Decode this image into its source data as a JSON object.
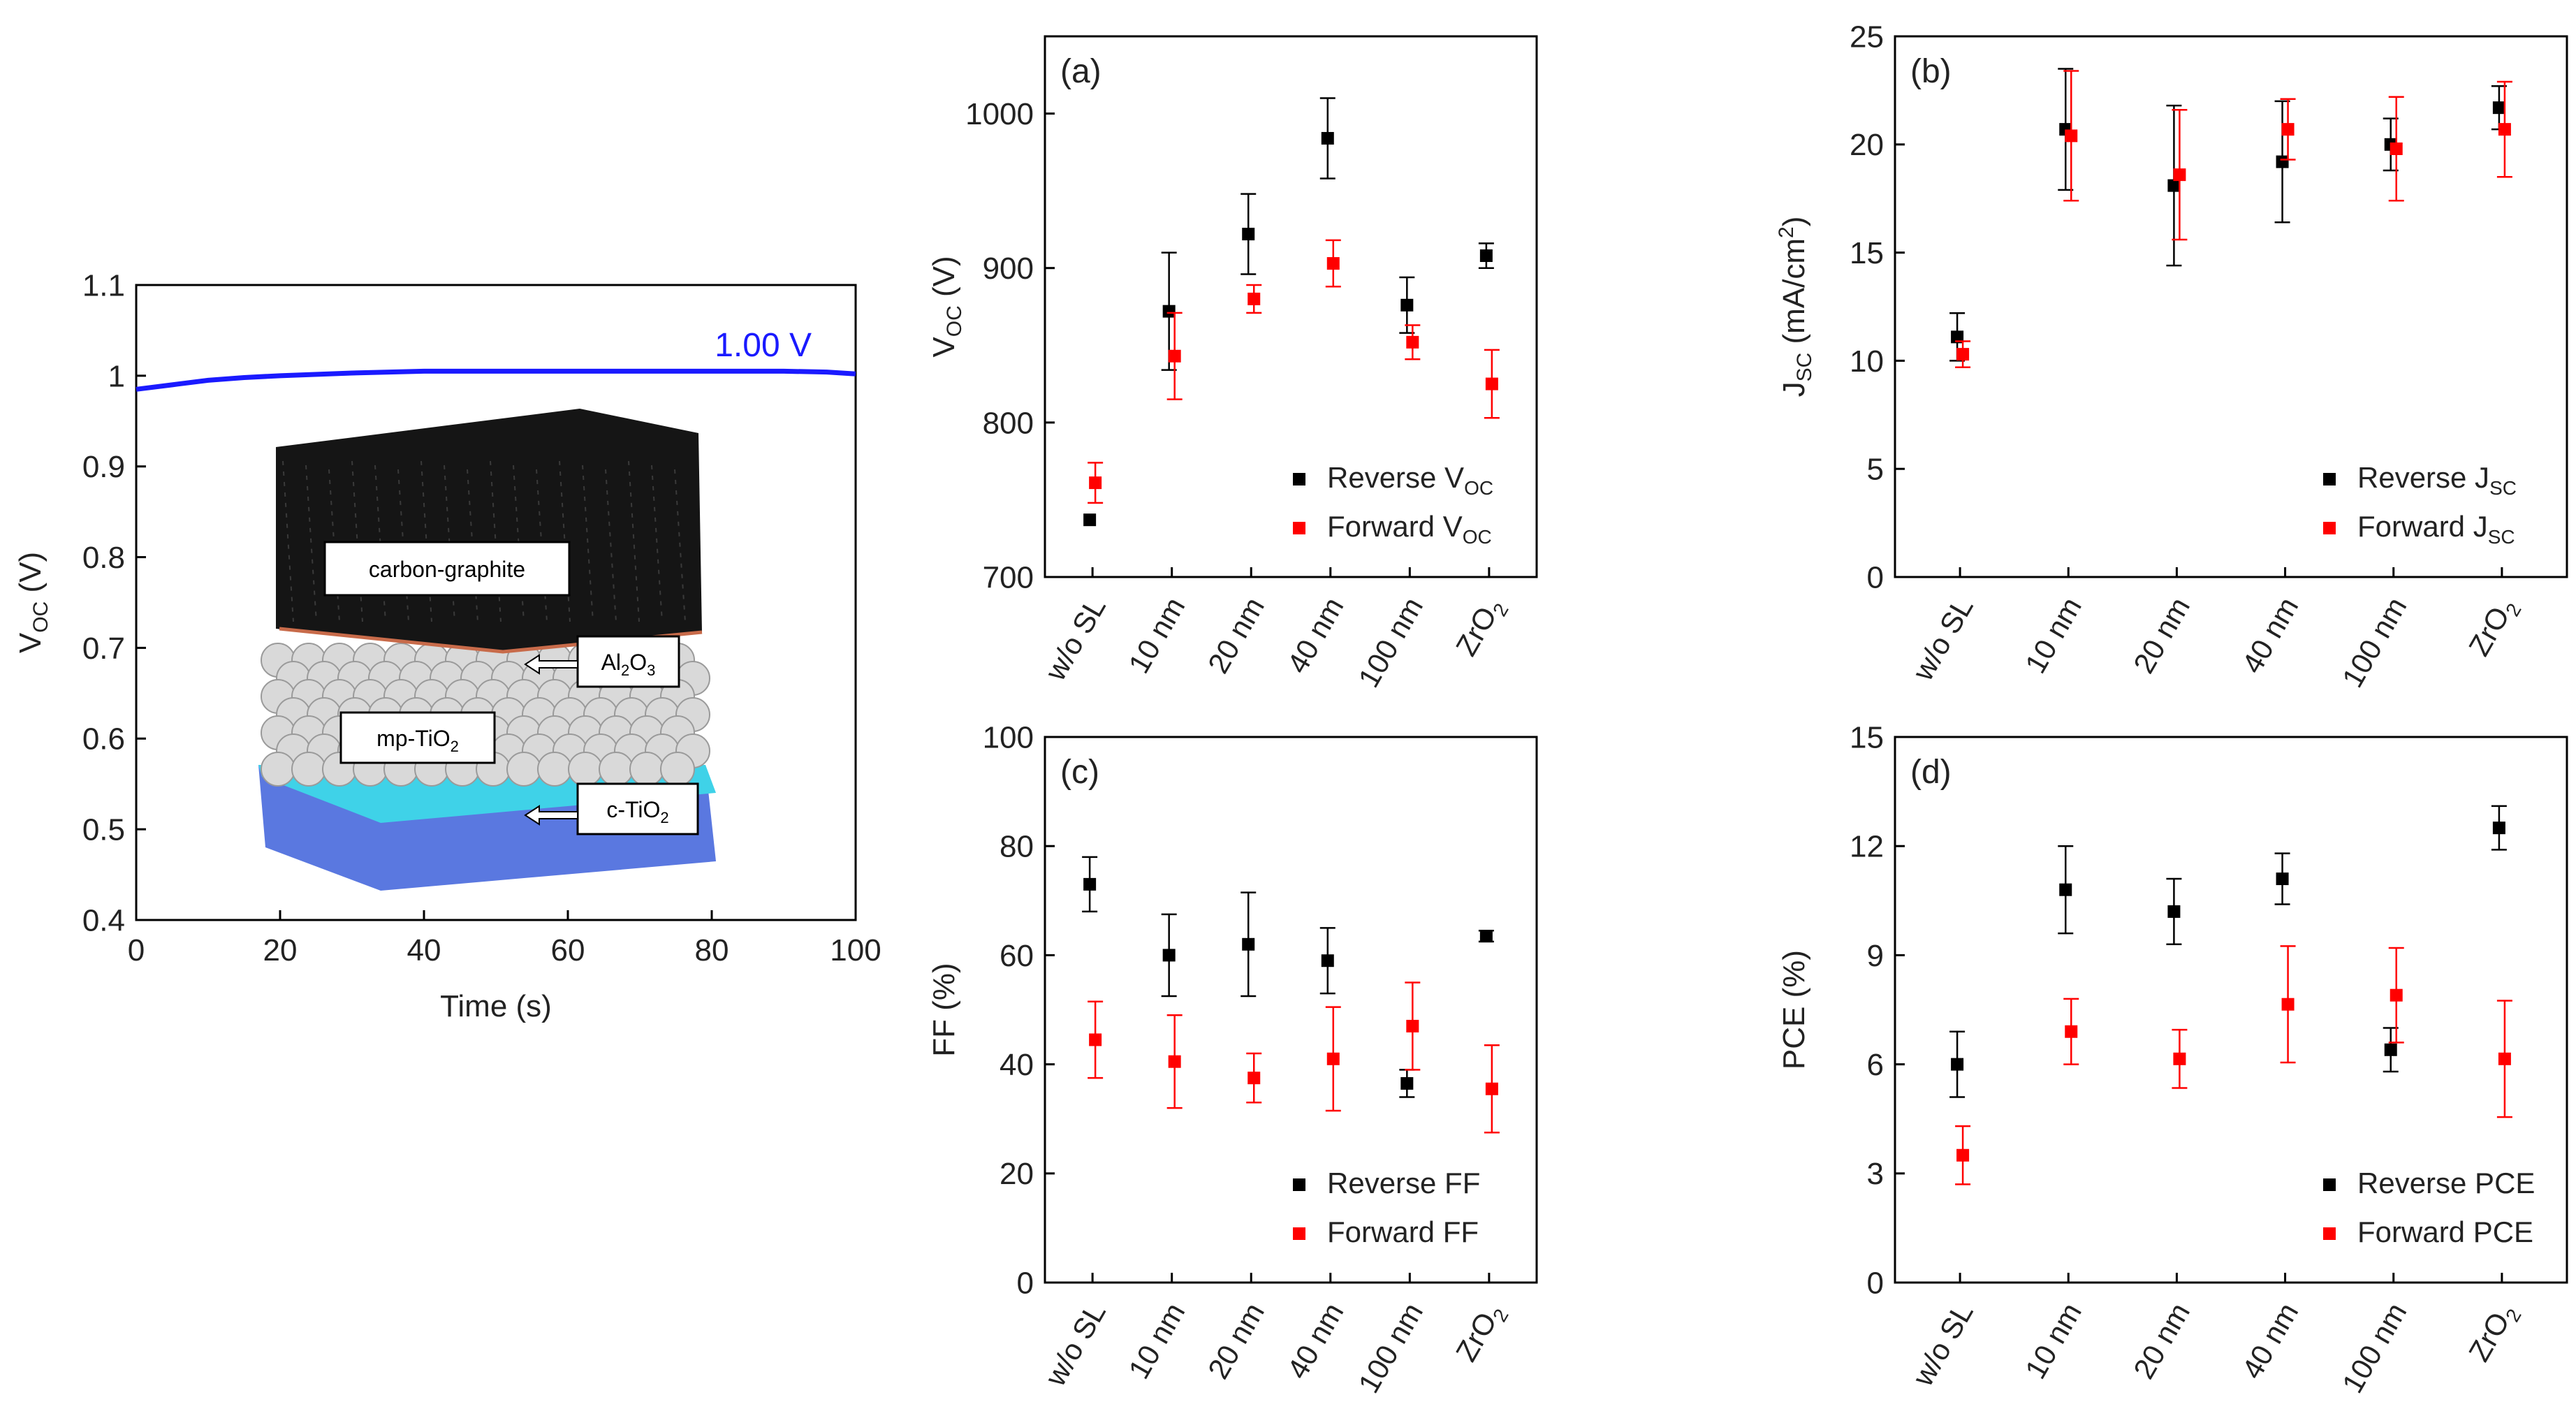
{
  "chart_data": [
    {
      "type": "line",
      "panel_label": "",
      "xlabel": "Time (s)",
      "ylabel_main": "V",
      "ylabel_sub": "OC",
      "ylabel_unit": " (V)",
      "xlim": [
        0,
        100
      ],
      "ylim": [
        0.4,
        1.1
      ],
      "xticks": [
        0,
        20,
        40,
        60,
        80,
        100
      ],
      "yticks": [
        0.4,
        0.5,
        0.6,
        0.7,
        0.8,
        0.9,
        1.0,
        1.1
      ],
      "series": [
        {
          "color": "#1a1aff",
          "x": [
            0,
            5,
            10,
            15,
            20,
            30,
            40,
            50,
            60,
            70,
            80,
            90,
            96,
            100
          ],
          "y": [
            0.985,
            0.99,
            0.995,
            0.998,
            1.0,
            1.003,
            1.005,
            1.005,
            1.005,
            1.005,
            1.005,
            1.005,
            1.004,
            1.002
          ]
        }
      ],
      "annotation": {
        "text": "1.00 V",
        "color": "#1a1aff"
      },
      "inset": {
        "labels": {
          "carbon": "carbon-graphite",
          "al_main": "Al",
          "al_sub": "2",
          "al_tail": "O",
          "al_sub2": "3",
          "mp_main": "mp-TiO",
          "mp_sub": "2",
          "c_main": "c-TiO",
          "c_sub": "2"
        },
        "colors": {
          "carbon": "#151515",
          "spheres": "#d9d9d9",
          "substrate_top": "#3fd2e8",
          "substrate_side": "#5a78e0"
        }
      }
    },
    {
      "type": "scatter",
      "panel_label": "(a)",
      "ylabel_main": "V",
      "ylabel_sub": "OC",
      "ylabel_unit": " (V)",
      "categories": [
        {
          "main": "w/o SL",
          "sub": ""
        },
        {
          "main": "10 nm",
          "sub": ""
        },
        {
          "main": "20 nm",
          "sub": ""
        },
        {
          "main": "40 nm",
          "sub": ""
        },
        {
          "main": "100 nm",
          "sub": ""
        },
        {
          "main": "ZrO",
          "sub": "2"
        }
      ],
      "ylim": [
        700,
        1050
      ],
      "yticks": [
        700,
        800,
        900,
        1000
      ],
      "series": [
        {
          "legend_main": "Reverse V",
          "legend_sub": "OC",
          "color": "#000000",
          "values": [
            737,
            872,
            922,
            984,
            876,
            908
          ],
          "errors": [
            0,
            38,
            26,
            26,
            18,
            8
          ]
        },
        {
          "legend_main": "Forward V",
          "legend_sub": "OC",
          "color": "#ff0000",
          "values": [
            761,
            843,
            880,
            903,
            852,
            825
          ],
          "errors": [
            13,
            28,
            9,
            15,
            11,
            22
          ]
        }
      ]
    },
    {
      "type": "scatter",
      "panel_label": "(b)",
      "ylabel_main": "J",
      "ylabel_sub": "SC",
      "ylabel_unit": " (mA/cm",
      "ylabel_sup": "2",
      "ylabel_close": ")",
      "categories": [
        {
          "main": "w/o SL",
          "sub": ""
        },
        {
          "main": "10 nm",
          "sub": ""
        },
        {
          "main": "20 nm",
          "sub": ""
        },
        {
          "main": "40 nm",
          "sub": ""
        },
        {
          "main": "100 nm",
          "sub": ""
        },
        {
          "main": "ZrO",
          "sub": "2"
        }
      ],
      "ylim": [
        0,
        25
      ],
      "yticks": [
        0,
        5,
        10,
        15,
        20,
        25
      ],
      "series": [
        {
          "legend_main": "Reverse J",
          "legend_sub": "SC",
          "color": "#000000",
          "values": [
            11.1,
            20.7,
            18.1,
            19.2,
            20.0,
            21.7
          ],
          "errors": [
            1.1,
            2.8,
            3.7,
            2.8,
            1.2,
            1.0
          ]
        },
        {
          "legend_main": "Forward J",
          "legend_sub": "SC",
          "color": "#ff0000",
          "values": [
            10.3,
            20.4,
            18.6,
            20.7,
            19.8,
            20.7
          ],
          "errors": [
            0.6,
            3.0,
            3.0,
            1.4,
            2.4,
            2.2
          ]
        }
      ]
    },
    {
      "type": "scatter",
      "panel_label": "(c)",
      "ylabel_main": "FF (%)",
      "ylabel_sub": "",
      "ylabel_unit": "",
      "categories": [
        {
          "main": "w/o SL",
          "sub": ""
        },
        {
          "main": "10 nm",
          "sub": ""
        },
        {
          "main": "20 nm",
          "sub": ""
        },
        {
          "main": "40 nm",
          "sub": ""
        },
        {
          "main": "100 nm",
          "sub": ""
        },
        {
          "main": "ZrO",
          "sub": "2"
        }
      ],
      "ylim": [
        0,
        100
      ],
      "yticks": [
        0,
        20,
        40,
        60,
        80,
        100
      ],
      "series": [
        {
          "legend_main": "Reverse FF",
          "legend_sub": "",
          "color": "#000000",
          "values": [
            73,
            60,
            62,
            59,
            36.5,
            63.5
          ],
          "errors": [
            5,
            7.5,
            9.5,
            6,
            2.5,
            1
          ]
        },
        {
          "legend_main": "Forward FF",
          "legend_sub": "",
          "color": "#ff0000",
          "values": [
            44.5,
            40.5,
            37.5,
            41,
            47,
            35.5
          ],
          "errors": [
            7,
            8.5,
            4.5,
            9.5,
            8,
            8
          ]
        }
      ]
    },
    {
      "type": "scatter",
      "panel_label": "(d)",
      "ylabel_main": "PCE (%)",
      "ylabel_sub": "",
      "ylabel_unit": "",
      "categories": [
        {
          "main": "w/o SL",
          "sub": ""
        },
        {
          "main": "10 nm",
          "sub": ""
        },
        {
          "main": "20 nm",
          "sub": ""
        },
        {
          "main": "40 nm",
          "sub": ""
        },
        {
          "main": "100 nm",
          "sub": ""
        },
        {
          "main": "ZrO",
          "sub": "2"
        }
      ],
      "ylim": [
        0,
        15
      ],
      "yticks": [
        0,
        3,
        6,
        9,
        12,
        15
      ],
      "series": [
        {
          "legend_main": "Reverse PCE",
          "legend_sub": "",
          "color": "#000000",
          "values": [
            6.0,
            10.8,
            10.2,
            11.1,
            6.4,
            12.5
          ],
          "errors": [
            0.9,
            1.2,
            0.9,
            0.7,
            0.6,
            0.6
          ]
        },
        {
          "legend_main": "Forward PCE",
          "legend_sub": "",
          "color": "#ff0000",
          "values": [
            3.5,
            6.9,
            6.15,
            7.65,
            7.9,
            6.15
          ],
          "errors": [
            0.8,
            0.9,
            0.8,
            1.6,
            1.3,
            1.6
          ]
        }
      ]
    }
  ]
}
